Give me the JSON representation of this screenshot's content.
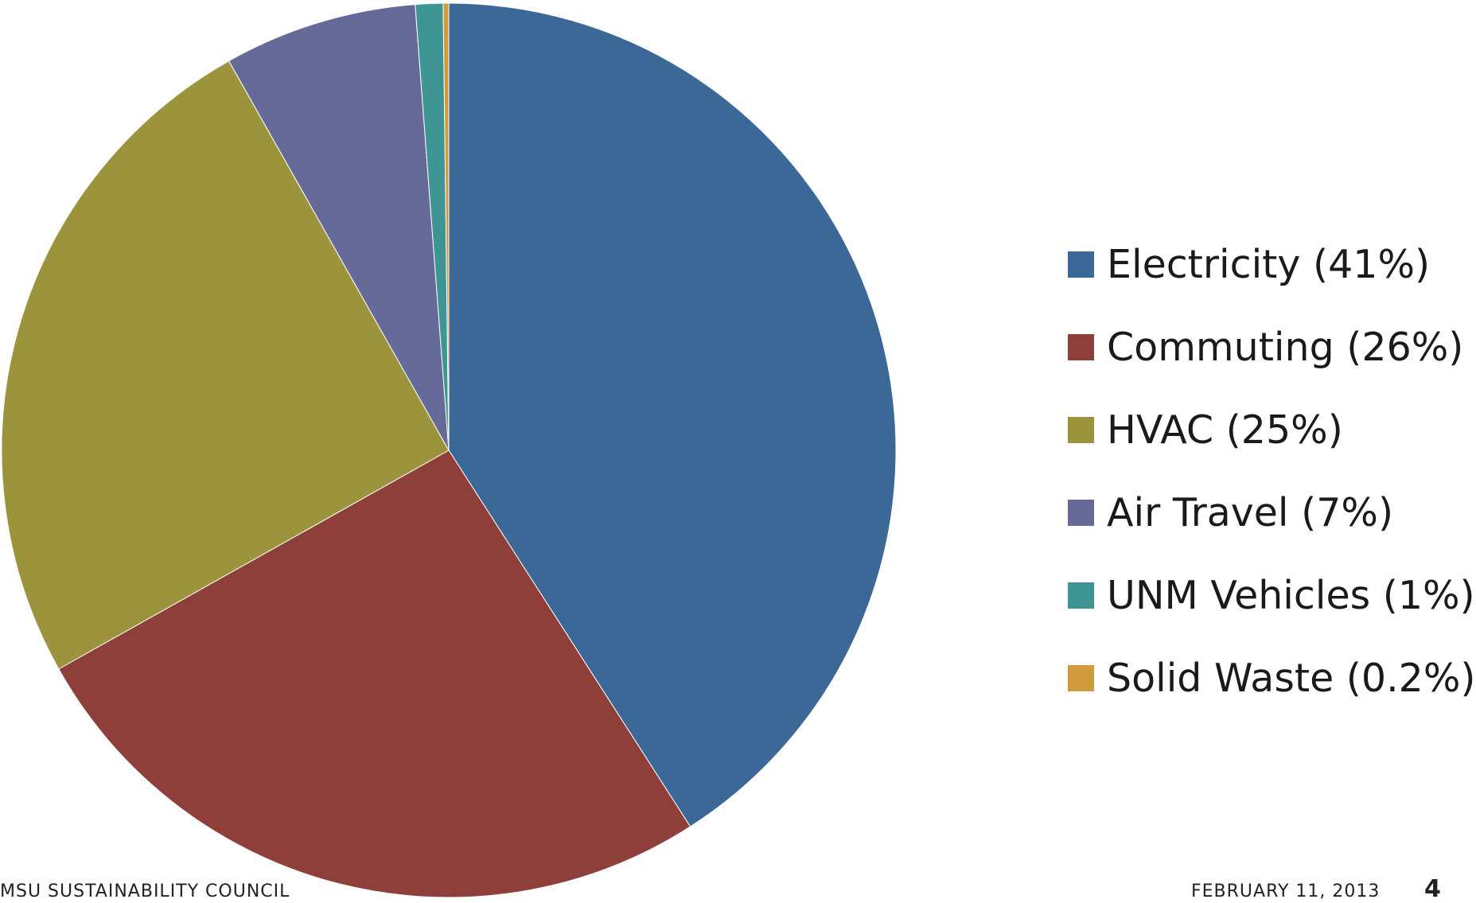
{
  "chart_data": {
    "type": "pie",
    "categories": [
      "Electricity",
      "Commuting",
      "HVAC",
      "Air Travel",
      "UNM Vehicles",
      "Solid Waste"
    ],
    "values": [
      41,
      26,
      25,
      7,
      1,
      0.2
    ],
    "legend_labels": [
      "Electricity (41%)",
      "Commuting (26%)",
      "HVAC (25%)",
      "Air Travel (7%)",
      "UNM Vehicles (1%)",
      "Solid Waste (0.2%)"
    ],
    "colors": [
      "#3b6896",
      "#8e3f3a",
      "#9b943d",
      "#656a99",
      "#3f9593",
      "#d19a3c"
    ],
    "legend_position": "right",
    "start_angle": "top, clockwise"
  },
  "footer": {
    "left": "MSU SUSTAINABILITY COUNCIL",
    "date": "FEBRUARY 11, 2013",
    "page": "4"
  }
}
